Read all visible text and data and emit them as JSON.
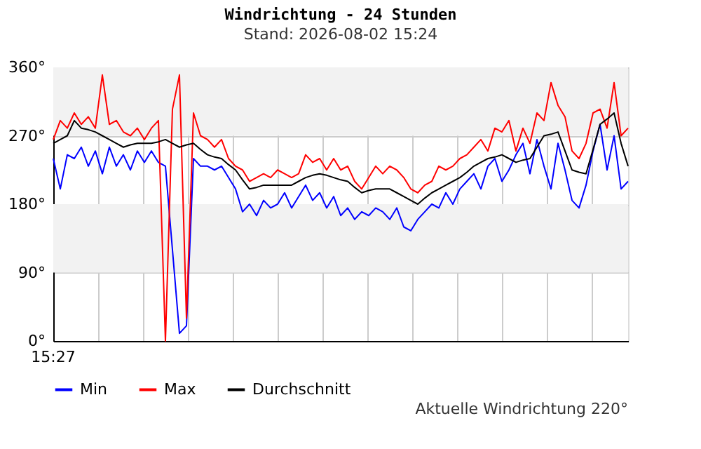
{
  "chart_data": {
    "type": "line",
    "title": "Windrichtung - 24 Stunden",
    "subtitle": "Stand: 2026-08-02 15:24",
    "categories": [
      null,
      null,
      null,
      null,
      null,
      null,
      null,
      null,
      null,
      null,
      null,
      null,
      null,
      null,
      null,
      null,
      null,
      null,
      null,
      null,
      null,
      null,
      null,
      null,
      null,
      null,
      null,
      null,
      null,
      null,
      null,
      null,
      null,
      null,
      null,
      null,
      null,
      null,
      null,
      null,
      null,
      null,
      null,
      null,
      null,
      null,
      null,
      null,
      null,
      null,
      null,
      null,
      null,
      null,
      null,
      null,
      null,
      null,
      null,
      null,
      null,
      null,
      null,
      null,
      null,
      null,
      null,
      null,
      null,
      null,
      null,
      null,
      null,
      null,
      null,
      null,
      null,
      null,
      null,
      null,
      null,
      null,
      null
    ],
    "ylim": [
      0,
      360
    ],
    "yticks": [
      {
        "value": 0,
        "label": "0°"
      },
      {
        "value": 90,
        "label": "90°"
      },
      {
        "value": 180,
        "label": "180°"
      },
      {
        "value": 270,
        "label": "270°"
      },
      {
        "value": 360,
        "label": "360°"
      }
    ],
    "grid": true,
    "legend": "bottom",
    "line_style": "solid",
    "bands": [
      {
        "axis": "y",
        "from": 90,
        "to": 180,
        "color": "#f2f2f2"
      },
      {
        "axis": "y",
        "from": 270,
        "to": 360,
        "color": "#f2f2f2"
      }
    ],
    "annotations": [
      "15:27",
      "Aktuelle Windrichtung 220°"
    ],
    "series": [
      {
        "name": "Min",
        "color": "#0000ff",
        "values": [
          240,
          200,
          245,
          240,
          255,
          230,
          250,
          220,
          255,
          230,
          245,
          225,
          250,
          235,
          250,
          235,
          230,
          120,
          10,
          20,
          240,
          230,
          230,
          225,
          230,
          215,
          200,
          170,
          180,
          165,
          185,
          175,
          180,
          195,
          175,
          190,
          205,
          185,
          195,
          175,
          190,
          165,
          175,
          160,
          170,
          165,
          175,
          170,
          160,
          175,
          150,
          145,
          160,
          170,
          180,
          175,
          195,
          180,
          200,
          210,
          220,
          200,
          230,
          240,
          210,
          225,
          245,
          260,
          220,
          265,
          230,
          200,
          260,
          225,
          185,
          175,
          205,
          250,
          285,
          225,
          270,
          200,
          210
        ]
      },
      {
        "name": "Max",
        "color": "#ff0000",
        "values": [
          265,
          290,
          280,
          300,
          285,
          295,
          280,
          350,
          285,
          290,
          275,
          270,
          280,
          265,
          280,
          290,
          0,
          305,
          350,
          30,
          300,
          270,
          265,
          255,
          265,
          240,
          230,
          225,
          210,
          215,
          220,
          215,
          225,
          220,
          215,
          220,
          245,
          235,
          240,
          225,
          240,
          225,
          230,
          210,
          200,
          215,
          230,
          220,
          230,
          225,
          215,
          200,
          195,
          205,
          210,
          230,
          225,
          230,
          240,
          245,
          255,
          265,
          250,
          280,
          275,
          290,
          250,
          280,
          260,
          300,
          290,
          340,
          310,
          295,
          250,
          240,
          260,
          300,
          305,
          280,
          340,
          270,
          280
        ]
      },
      {
        "name": "Durchschnitt",
        "color": "#000000",
        "values": [
          260,
          265,
          270,
          290,
          280,
          278,
          275,
          270,
          265,
          260,
          255,
          258,
          260,
          260,
          260,
          262,
          265,
          260,
          255,
          258,
          260,
          252,
          245,
          242,
          240,
          232,
          225,
          212,
          200,
          202,
          205,
          205,
          205,
          205,
          205,
          210,
          215,
          218,
          220,
          218,
          215,
          212,
          210,
          202,
          195,
          198,
          200,
          200,
          200,
          195,
          190,
          185,
          180,
          188,
          195,
          200,
          205,
          210,
          215,
          222,
          230,
          235,
          240,
          242,
          245,
          240,
          235,
          238,
          240,
          255,
          270,
          272,
          275,
          250,
          225,
          222,
          220,
          252,
          285,
          292,
          300,
          260,
          230
        ]
      }
    ]
  }
}
